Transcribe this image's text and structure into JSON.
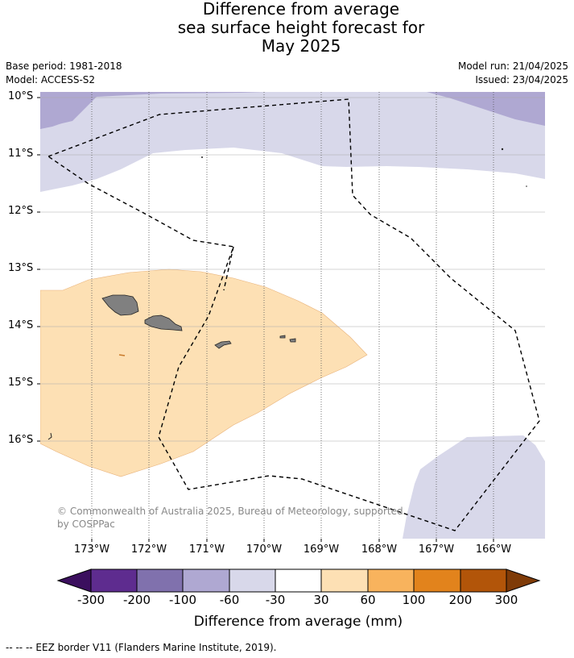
{
  "title_lines": [
    "Difference from average",
    "sea surface height forecast for",
    "May 2025"
  ],
  "meta_left": [
    "Base period: 1981-2018",
    "Model: ACCESS-S2"
  ],
  "meta_right": [
    "Model run: 21/04/2025",
    "Issued: 23/04/2025"
  ],
  "lat_labels": [
    "10°S",
    "11°S",
    "12°S",
    "13°S",
    "14°S",
    "15°S",
    "16°S"
  ],
  "lon_labels": [
    "173°W",
    "172°W",
    "171°W",
    "170°W",
    "169°W",
    "168°W",
    "167°W",
    "166°W"
  ],
  "credit": "© Commonwealth of Australia 2025, Bureau of Meteorology, supported by COSPPac",
  "colorbar": {
    "title": "Difference from average (mm)",
    "tick_labels": [
      "-300",
      "-200",
      "-100",
      "-60",
      "-30",
      "30",
      "60",
      "100",
      "200",
      "300"
    ],
    "colors": [
      "#3b0f5e",
      "#5e2c8f",
      "#8071ad",
      "#afa8d2",
      "#d8d8ea",
      "#ffffff",
      "#fde0b4",
      "#f8b35d",
      "#e2831c",
      "#b25509",
      "#7f3b08"
    ]
  },
  "legend_footer": "--  --  -- EEZ border V11 (Flanders Marine Institute, 2019)."
}
